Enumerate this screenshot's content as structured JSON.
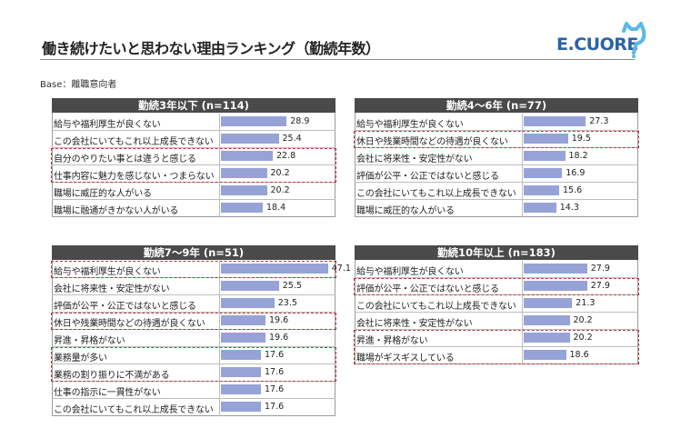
{
  "header": {
    "title": "働き続けたいと思わない理由ランキング（勤続年数）",
    "logo_text": "E.CUORE",
    "base_note": "Base：離職意向者"
  },
  "colors": {
    "bar": "#97a3d7",
    "header_bg": "#4a4a4a",
    "highlight": "#b23a3a"
  },
  "chart_data": [
    {
      "type": "bar",
      "title": "勤続3年以下 (n=114)",
      "categories": [
        "給与や福利厚生が良くない",
        "この会社にいてもこれ以上成長できない",
        "自分のやりたい事とは違うと感じる",
        "仕事内容に魅力を感じない・つまらない",
        "職場に威圧的な人がいる",
        "職場に融通がきかない人がいる"
      ],
      "values": [
        28.9,
        25.4,
        22.8,
        20.2,
        20.2,
        18.4
      ],
      "highlight": [
        [
          2,
          3
        ]
      ],
      "xlim": [
        0,
        50
      ]
    },
    {
      "type": "bar",
      "title": "勤続4～6年 (n=77)",
      "categories": [
        "給与や福利厚生が良くない",
        "休日や残業時間などの待遇が良くない",
        "会社に将来性・安定性がない",
        "評価が公平・公正ではないと感じる",
        "この会社にいてもこれ以上成長できない",
        "職場に威圧的な人がいる"
      ],
      "values": [
        27.3,
        19.5,
        18.2,
        16.9,
        15.6,
        14.3
      ],
      "highlight": [
        [
          1,
          1
        ]
      ],
      "xlim": [
        0,
        50
      ]
    },
    {
      "type": "bar",
      "title": "勤続7～9年 (n=51)",
      "categories": [
        "給与や福利厚生が良くない",
        "会社に将来性・安定性がない",
        "評価が公平・公正ではないと感じる",
        "休日や残業時間などの待遇が良くない",
        "昇進・昇格がない",
        "業務量が多い",
        "業務の割り振りに不満がある",
        "仕事の指示に一貫性がない",
        "この会社にいてもこれ以上成長できない"
      ],
      "values": [
        47.1,
        25.5,
        23.5,
        19.6,
        19.6,
        17.6,
        17.6,
        17.6,
        17.6
      ],
      "highlight": [
        [
          0,
          0
        ],
        [
          3,
          3
        ],
        [
          5,
          6
        ]
      ],
      "xlim": [
        0,
        50
      ]
    },
    {
      "type": "bar",
      "title": "勤続10年以上 (n=183)",
      "categories": [
        "給与や福利厚生が良くない",
        "評価が公平・公正ではないと感じる",
        "この会社にいてもこれ以上成長できない",
        "会社に将来性・安定性がない",
        "昇進・昇格がない",
        "職場がギスギスしている"
      ],
      "values": [
        27.9,
        27.9,
        21.3,
        20.2,
        20.2,
        18.6
      ],
      "highlight": [
        [
          1,
          1
        ],
        [
          4,
          5
        ]
      ],
      "xlim": [
        0,
        50
      ]
    }
  ]
}
